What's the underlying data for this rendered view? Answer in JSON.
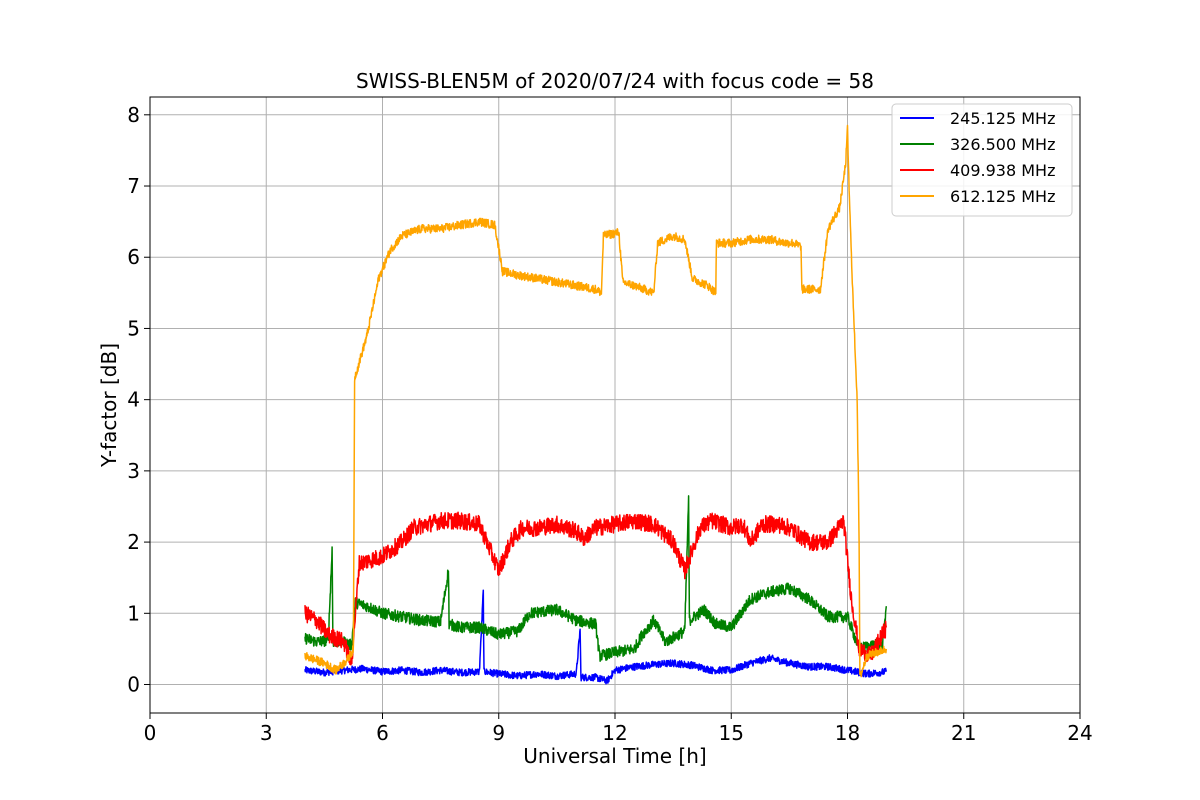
{
  "chart_data": {
    "type": "line",
    "title": "SWISS-BLEN5M of 2020/07/24 with focus code = 58",
    "xlabel": "Universal Time [h]",
    "ylabel": "Y-factor [dB]",
    "xlim": [
      0,
      24
    ],
    "ylim": [
      -0.4,
      8.25
    ],
    "xticks": [
      0,
      3,
      6,
      9,
      12,
      15,
      18,
      21,
      24
    ],
    "yticks": [
      0,
      1,
      2,
      3,
      4,
      5,
      6,
      7,
      8
    ],
    "grid": true,
    "legend_position": "top-right",
    "series": [
      {
        "name": "245.125 MHz",
        "color": "#0000ff",
        "points": [
          [
            4.0,
            0.2
          ],
          [
            4.5,
            0.17
          ],
          [
            5.0,
            0.2
          ],
          [
            5.5,
            0.22
          ],
          [
            6.0,
            0.18
          ],
          [
            6.5,
            0.2
          ],
          [
            7.0,
            0.17
          ],
          [
            7.5,
            0.2
          ],
          [
            8.0,
            0.17
          ],
          [
            8.5,
            0.18
          ],
          [
            8.6,
            1.3
          ],
          [
            8.62,
            0.18
          ],
          [
            9.0,
            0.15
          ],
          [
            9.5,
            0.12
          ],
          [
            10.0,
            0.15
          ],
          [
            10.5,
            0.12
          ],
          [
            11.0,
            0.15
          ],
          [
            11.1,
            0.78
          ],
          [
            11.12,
            0.1
          ],
          [
            11.5,
            0.1
          ],
          [
            11.8,
            0.05
          ],
          [
            12.0,
            0.2
          ],
          [
            12.5,
            0.25
          ],
          [
            13.0,
            0.28
          ],
          [
            13.5,
            0.3
          ],
          [
            14.0,
            0.27
          ],
          [
            14.5,
            0.2
          ],
          [
            15.0,
            0.2
          ],
          [
            15.5,
            0.3
          ],
          [
            16.0,
            0.37
          ],
          [
            16.5,
            0.3
          ],
          [
            17.0,
            0.25
          ],
          [
            17.5,
            0.25
          ],
          [
            18.0,
            0.2
          ],
          [
            18.5,
            0.15
          ],
          [
            19.0,
            0.18
          ]
        ],
        "noise": 0.05
      },
      {
        "name": "326.500 MHz",
        "color": "#008000",
        "points": [
          [
            4.0,
            0.65
          ],
          [
            4.3,
            0.6
          ],
          [
            4.6,
            0.62
          ],
          [
            4.7,
            1.9
          ],
          [
            4.72,
            0.6
          ],
          [
            5.0,
            0.6
          ],
          [
            5.2,
            0.55
          ],
          [
            5.3,
            1.15
          ],
          [
            5.6,
            1.1
          ],
          [
            6.0,
            1.0
          ],
          [
            6.5,
            0.95
          ],
          [
            7.0,
            0.9
          ],
          [
            7.5,
            0.88
          ],
          [
            7.7,
            1.6
          ],
          [
            7.72,
            0.85
          ],
          [
            8.0,
            0.8
          ],
          [
            8.5,
            0.8
          ],
          [
            9.0,
            0.7
          ],
          [
            9.5,
            0.75
          ],
          [
            9.8,
            1.0
          ],
          [
            10.5,
            1.05
          ],
          [
            11.0,
            0.9
          ],
          [
            11.5,
            0.85
          ],
          [
            11.6,
            0.4
          ],
          [
            12.0,
            0.45
          ],
          [
            12.5,
            0.5
          ],
          [
            12.7,
            0.7
          ],
          [
            13.0,
            0.9
          ],
          [
            13.3,
            0.6
          ],
          [
            13.8,
            0.75
          ],
          [
            13.9,
            2.6
          ],
          [
            13.92,
            0.9
          ],
          [
            14.3,
            1.05
          ],
          [
            14.6,
            0.85
          ],
          [
            15.0,
            0.8
          ],
          [
            15.5,
            1.2
          ],
          [
            16.0,
            1.3
          ],
          [
            16.5,
            1.35
          ],
          [
            17.0,
            1.2
          ],
          [
            17.5,
            0.95
          ],
          [
            18.0,
            0.95
          ],
          [
            18.3,
            0.5
          ],
          [
            18.6,
            0.55
          ],
          [
            18.9,
            0.55
          ],
          [
            19.0,
            1.1
          ]
        ],
        "noise": 0.08
      },
      {
        "name": "409.938 MHz",
        "color": "#ff0000",
        "points": [
          [
            4.0,
            1.0
          ],
          [
            4.3,
            0.9
          ],
          [
            4.6,
            0.7
          ],
          [
            5.0,
            0.6
          ],
          [
            5.2,
            0.3
          ],
          [
            5.4,
            1.7
          ],
          [
            6.0,
            1.8
          ],
          [
            6.5,
            2.0
          ],
          [
            6.8,
            2.2
          ],
          [
            7.5,
            2.3
          ],
          [
            8.0,
            2.3
          ],
          [
            8.5,
            2.25
          ],
          [
            9.0,
            1.6
          ],
          [
            9.3,
            2.0
          ],
          [
            9.6,
            2.2
          ],
          [
            10.0,
            2.2
          ],
          [
            10.5,
            2.25
          ],
          [
            11.0,
            2.15
          ],
          [
            11.2,
            2.05
          ],
          [
            11.5,
            2.2
          ],
          [
            12.0,
            2.25
          ],
          [
            12.5,
            2.3
          ],
          [
            13.0,
            2.25
          ],
          [
            13.5,
            2.0
          ],
          [
            13.8,
            1.6
          ],
          [
            14.2,
            2.2
          ],
          [
            14.5,
            2.3
          ],
          [
            15.0,
            2.2
          ],
          [
            15.3,
            2.25
          ],
          [
            15.5,
            2.0
          ],
          [
            15.8,
            2.25
          ],
          [
            16.2,
            2.25
          ],
          [
            16.5,
            2.2
          ],
          [
            17.0,
            2.0
          ],
          [
            17.5,
            2.0
          ],
          [
            17.9,
            2.3
          ],
          [
            18.1,
            1.2
          ],
          [
            18.3,
            0.5
          ],
          [
            18.6,
            0.4
          ],
          [
            19.0,
            0.8
          ]
        ],
        "noise": 0.12
      },
      {
        "name": "612.125 MHz",
        "color": "#ffa500",
        "points": [
          [
            4.0,
            0.4
          ],
          [
            4.5,
            0.3
          ],
          [
            4.8,
            0.2
          ],
          [
            5.1,
            0.35
          ],
          [
            5.25,
            0.5
          ],
          [
            5.28,
            4.3
          ],
          [
            5.6,
            4.9
          ],
          [
            5.9,
            5.7
          ],
          [
            6.2,
            6.1
          ],
          [
            6.5,
            6.3
          ],
          [
            7.0,
            6.4
          ],
          [
            7.5,
            6.4
          ],
          [
            8.0,
            6.45
          ],
          [
            8.5,
            6.5
          ],
          [
            8.9,
            6.45
          ],
          [
            9.1,
            5.8
          ],
          [
            9.5,
            5.75
          ],
          [
            10.0,
            5.7
          ],
          [
            10.5,
            5.65
          ],
          [
            11.0,
            5.6
          ],
          [
            11.5,
            5.55
          ],
          [
            11.65,
            5.5
          ],
          [
            11.7,
            6.3
          ],
          [
            12.1,
            6.35
          ],
          [
            12.2,
            5.65
          ],
          [
            12.5,
            5.6
          ],
          [
            13.0,
            5.5
          ],
          [
            13.1,
            6.2
          ],
          [
            13.5,
            6.3
          ],
          [
            13.8,
            6.25
          ],
          [
            14.0,
            5.7
          ],
          [
            14.4,
            5.6
          ],
          [
            14.6,
            5.5
          ],
          [
            14.62,
            6.2
          ],
          [
            15.0,
            6.2
          ],
          [
            15.5,
            6.25
          ],
          [
            16.0,
            6.25
          ],
          [
            16.4,
            6.2
          ],
          [
            16.6,
            6.2
          ],
          [
            16.8,
            6.15
          ],
          [
            16.82,
            5.55
          ],
          [
            17.3,
            5.55
          ],
          [
            17.5,
            6.4
          ],
          [
            17.8,
            6.7
          ],
          [
            17.95,
            7.3
          ],
          [
            18.0,
            7.8
          ],
          [
            18.05,
            6.8
          ],
          [
            18.15,
            5.3
          ],
          [
            18.25,
            4.0
          ],
          [
            18.3,
            2.0
          ],
          [
            18.32,
            0.1
          ],
          [
            18.5,
            0.4
          ],
          [
            19.0,
            0.5
          ]
        ],
        "noise": 0.06
      }
    ]
  }
}
